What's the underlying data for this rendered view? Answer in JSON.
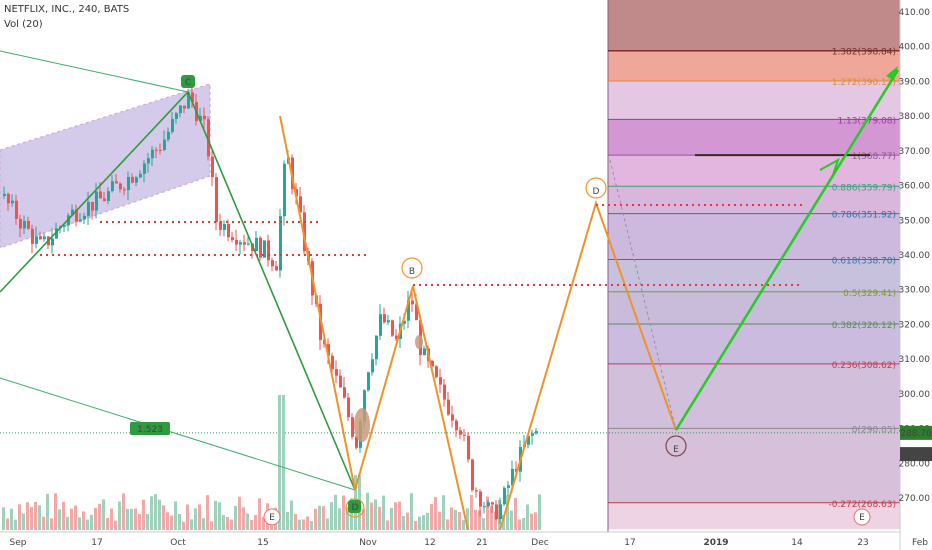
{
  "header": {
    "symbol_line": "NETFLIX, INC., 240, BATS",
    "volume_label": "Vol (20)"
  },
  "price_axis": {
    "ticks": [
      "410.00",
      "400.00",
      "390.00",
      "380.00",
      "370.00",
      "360.00",
      "350.00",
      "340.00",
      "330.00",
      "320.00",
      "310.00",
      "300.00",
      "290.00",
      "280.00",
      "270.00"
    ],
    "last_price": "288.76",
    "close_price": "282.65",
    "last_price_color": "#2f7d2f",
    "close_price_color": "#444444"
  },
  "time_axis": {
    "ticks": [
      "Sep",
      "17",
      "Oct",
      "15",
      "Nov",
      "12",
      "21",
      "Dec",
      "17",
      "2019",
      "14",
      "23",
      "Feb"
    ]
  },
  "annotation": {
    "volume_marker": "1.523"
  },
  "wave_labels": {
    "c": "C",
    "d_bottom": "D",
    "b": "B",
    "d": "D",
    "e": "E"
  },
  "earnings_markers": [
    "E",
    "E"
  ],
  "fib_levels": [
    {
      "label": "1.382(398.84)",
      "color": "#7a2e2e"
    },
    {
      "label": "1.272(390.12)",
      "color": "#e08a33"
    },
    {
      "label": "1.13(379.08)",
      "color": "#9a3a9a"
    },
    {
      "label": "1(368.77)",
      "color": "#8a5a9a"
    },
    {
      "label": "0.886(359.79)",
      "color": "#3aa07a"
    },
    {
      "label": "0.786(351.92)",
      "color": "#3a70a0"
    },
    {
      "label": "0.618(338.70)",
      "color": "#3a70a0"
    },
    {
      "label": "0.5(329.41)",
      "color": "#7a9a2a"
    },
    {
      "label": "0.382(320.12)",
      "color": "#5a8a5a"
    },
    {
      "label": "0.236(308.62)",
      "color": "#c03a4a"
    },
    {
      "label": "0(290.05)",
      "color": "#888888"
    },
    {
      "label": "-0.272(268.63)",
      "color": "#c03a4a"
    }
  ],
  "chart_data": {
    "type": "candlestick",
    "title": "NETFLIX, INC., 240, BATS",
    "ylim": [
      262,
      412
    ],
    "price_axis_side": "right",
    "volume_series_name": "Vol (20)",
    "harmonic_points": [
      {
        "label": "C",
        "time": "Oct 3",
        "price": 387
      },
      {
        "label": "D",
        "time": "Oct 31",
        "price": 275
      },
      {
        "label": "B",
        "time": "Nov 8",
        "price": 332
      },
      {
        "label": "D",
        "time": "Dec 12",
        "price": 354
      },
      {
        "label": "E",
        "time": "Jan 6",
        "price": 290
      }
    ],
    "projection": {
      "from_price": 290,
      "to_price": 393
    },
    "fibonacci": [
      {
        "ratio": 1.382,
        "price": 398.84
      },
      {
        "ratio": 1.272,
        "price": 390.12
      },
      {
        "ratio": 1.13,
        "price": 379.08
      },
      {
        "ratio": 1.0,
        "price": 368.77
      },
      {
        "ratio": 0.886,
        "price": 359.79
      },
      {
        "ratio": 0.786,
        "price": 351.92
      },
      {
        "ratio": 0.618,
        "price": 338.7
      },
      {
        "ratio": 0.5,
        "price": 329.41
      },
      {
        "ratio": 0.382,
        "price": 320.12
      },
      {
        "ratio": 0.236,
        "price": 308.62
      },
      {
        "ratio": 0.0,
        "price": 290.05
      },
      {
        "ratio": -0.272,
        "price": 268.63
      }
    ],
    "resistance_levels": [
      350,
      340,
      332,
      354
    ],
    "last_price": 288.76,
    "close_price": 282.65
  }
}
